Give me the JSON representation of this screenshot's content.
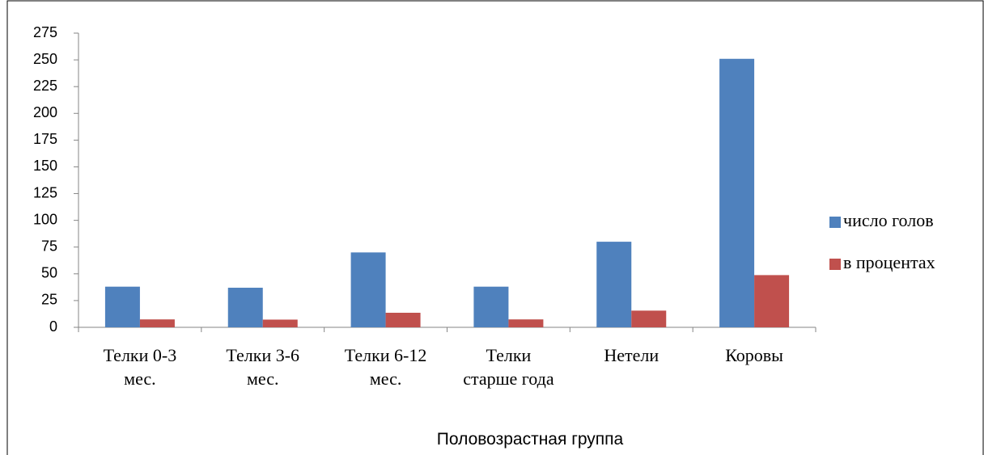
{
  "chart_data": {
    "type": "bar",
    "x_label": "Половозрастная группа",
    "categories": [
      "Телки 0-3 мес.",
      "Телки 3-6 мес.",
      "Телки 6-12 мес.",
      "Телки старше года",
      "Нетели",
      "Коровы"
    ],
    "series": [
      {
        "name": "число голов",
        "color": "#4f81bd",
        "values": [
          38,
          37,
          70,
          38,
          80,
          251
        ]
      },
      {
        "name": "в процентах",
        "color": "#c0504d",
        "values": [
          7.4,
          7.2,
          13.6,
          7.4,
          15.6,
          48.8
        ]
      }
    ],
    "ylim": [
      0,
      275
    ],
    "yticks": [
      0,
      25,
      50,
      75,
      100,
      125,
      150,
      175,
      200,
      225,
      250,
      275
    ],
    "grid": false,
    "legend": "right"
  }
}
